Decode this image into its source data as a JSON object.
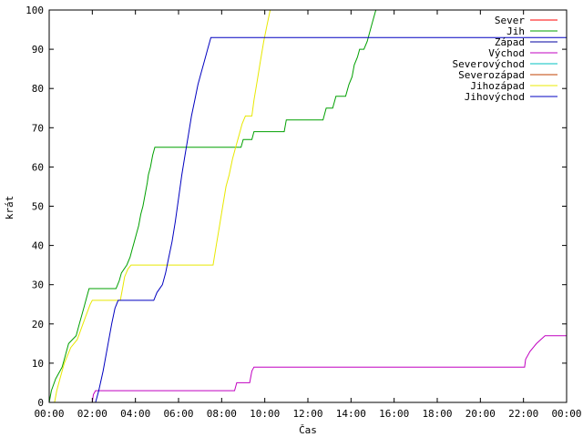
{
  "chart_data": {
    "type": "line",
    "title": "",
    "xlabel": "Čas",
    "ylabel": "krát",
    "xlim": [
      0,
      24
    ],
    "ylim": [
      0,
      100
    ],
    "x_ticks": [
      "00:00",
      "02:00",
      "04:00",
      "06:00",
      "08:00",
      "10:00",
      "12:00",
      "14:00",
      "16:00",
      "18:00",
      "20:00",
      "22:00",
      "00:00"
    ],
    "y_ticks": [
      0,
      10,
      20,
      30,
      40,
      50,
      60,
      70,
      80,
      90,
      100
    ],
    "grid": false,
    "legend_position": "top-right",
    "series": [
      {
        "name": "Sever",
        "color": "#ff0000",
        "points": []
      },
      {
        "name": "Jih",
        "color": "#00a000",
        "points": [
          [
            0.0,
            0
          ],
          [
            0.1,
            3
          ],
          [
            0.3,
            6
          ],
          [
            0.6,
            9
          ],
          [
            0.75,
            12
          ],
          [
            0.9,
            15
          ],
          [
            1.25,
            17
          ],
          [
            1.4,
            20
          ],
          [
            1.6,
            24
          ],
          [
            1.75,
            27
          ],
          [
            1.85,
            29
          ],
          [
            3.1,
            29
          ],
          [
            3.25,
            31
          ],
          [
            3.35,
            33
          ],
          [
            3.6,
            35
          ],
          [
            3.75,
            37
          ],
          [
            3.85,
            39
          ],
          [
            3.95,
            41
          ],
          [
            4.05,
            43
          ],
          [
            4.15,
            45
          ],
          [
            4.25,
            48
          ],
          [
            4.35,
            50
          ],
          [
            4.45,
            53
          ],
          [
            4.55,
            56
          ],
          [
            4.6,
            58
          ],
          [
            4.7,
            60
          ],
          [
            4.8,
            63
          ],
          [
            4.9,
            65
          ],
          [
            8.9,
            65
          ],
          [
            9.0,
            67
          ],
          [
            9.4,
            67
          ],
          [
            9.5,
            69
          ],
          [
            10.9,
            69
          ],
          [
            11.0,
            72
          ],
          [
            12.7,
            72
          ],
          [
            12.85,
            75
          ],
          [
            13.15,
            75
          ],
          [
            13.3,
            78
          ],
          [
            13.75,
            78
          ],
          [
            13.9,
            81
          ],
          [
            14.05,
            83
          ],
          [
            14.15,
            86
          ],
          [
            14.3,
            88
          ],
          [
            14.4,
            90
          ],
          [
            14.6,
            90
          ],
          [
            14.75,
            92
          ],
          [
            14.9,
            95
          ],
          [
            15.0,
            97
          ],
          [
            15.15,
            100
          ]
        ]
      },
      {
        "name": "Západ",
        "color": "#0000a0",
        "points": []
      },
      {
        "name": "Východ",
        "color": "#c000c0",
        "points": [
          [
            2.0,
            0
          ],
          [
            2.05,
            2
          ],
          [
            2.15,
            3
          ],
          [
            8.6,
            3
          ],
          [
            8.7,
            5
          ],
          [
            9.3,
            5
          ],
          [
            9.4,
            8
          ],
          [
            9.5,
            9
          ],
          [
            22.05,
            9
          ],
          [
            22.1,
            11
          ],
          [
            22.3,
            13
          ],
          [
            22.6,
            15
          ],
          [
            23.0,
            17
          ],
          [
            24.0,
            17
          ]
        ]
      },
      {
        "name": "Severovýchod",
        "color": "#00c0c0",
        "points": []
      },
      {
        "name": "Severozápad",
        "color": "#c04000",
        "points": []
      },
      {
        "name": "Jihozápad",
        "color": "#e8e800",
        "points": [
          [
            0.25,
            0
          ],
          [
            0.35,
            3
          ],
          [
            0.5,
            6
          ],
          [
            0.7,
            10
          ],
          [
            1.0,
            14
          ],
          [
            1.3,
            16
          ],
          [
            1.5,
            19
          ],
          [
            1.7,
            22
          ],
          [
            1.9,
            25
          ],
          [
            2.0,
            26
          ],
          [
            3.3,
            26
          ],
          [
            3.4,
            29
          ],
          [
            3.5,
            32
          ],
          [
            3.65,
            34
          ],
          [
            3.8,
            35
          ],
          [
            7.6,
            35
          ],
          [
            7.75,
            40
          ],
          [
            7.9,
            45
          ],
          [
            8.05,
            50
          ],
          [
            8.2,
            55
          ],
          [
            8.35,
            58
          ],
          [
            8.5,
            62
          ],
          [
            8.65,
            65
          ],
          [
            8.8,
            68
          ],
          [
            8.95,
            71
          ],
          [
            9.1,
            73
          ],
          [
            9.4,
            73
          ],
          [
            9.5,
            77
          ],
          [
            9.65,
            82
          ],
          [
            9.8,
            87
          ],
          [
            9.95,
            92
          ],
          [
            10.1,
            96
          ],
          [
            10.25,
            100
          ]
        ]
      },
      {
        "name": "Jihovýchod",
        "color": "#0000c0",
        "points": [
          [
            2.15,
            0
          ],
          [
            2.3,
            3
          ],
          [
            2.5,
            8
          ],
          [
            2.7,
            14
          ],
          [
            2.9,
            20
          ],
          [
            3.05,
            24
          ],
          [
            3.2,
            26
          ],
          [
            4.85,
            26
          ],
          [
            5.0,
            28
          ],
          [
            5.25,
            30
          ],
          [
            5.4,
            33
          ],
          [
            5.55,
            37
          ],
          [
            5.7,
            41
          ],
          [
            5.85,
            46
          ],
          [
            6.0,
            52
          ],
          [
            6.15,
            58
          ],
          [
            6.3,
            63
          ],
          [
            6.45,
            68
          ],
          [
            6.6,
            73
          ],
          [
            6.75,
            77
          ],
          [
            6.9,
            81
          ],
          [
            7.05,
            84
          ],
          [
            7.2,
            87
          ],
          [
            7.35,
            90
          ],
          [
            7.5,
            93
          ],
          [
            24.0,
            93
          ]
        ]
      }
    ]
  }
}
